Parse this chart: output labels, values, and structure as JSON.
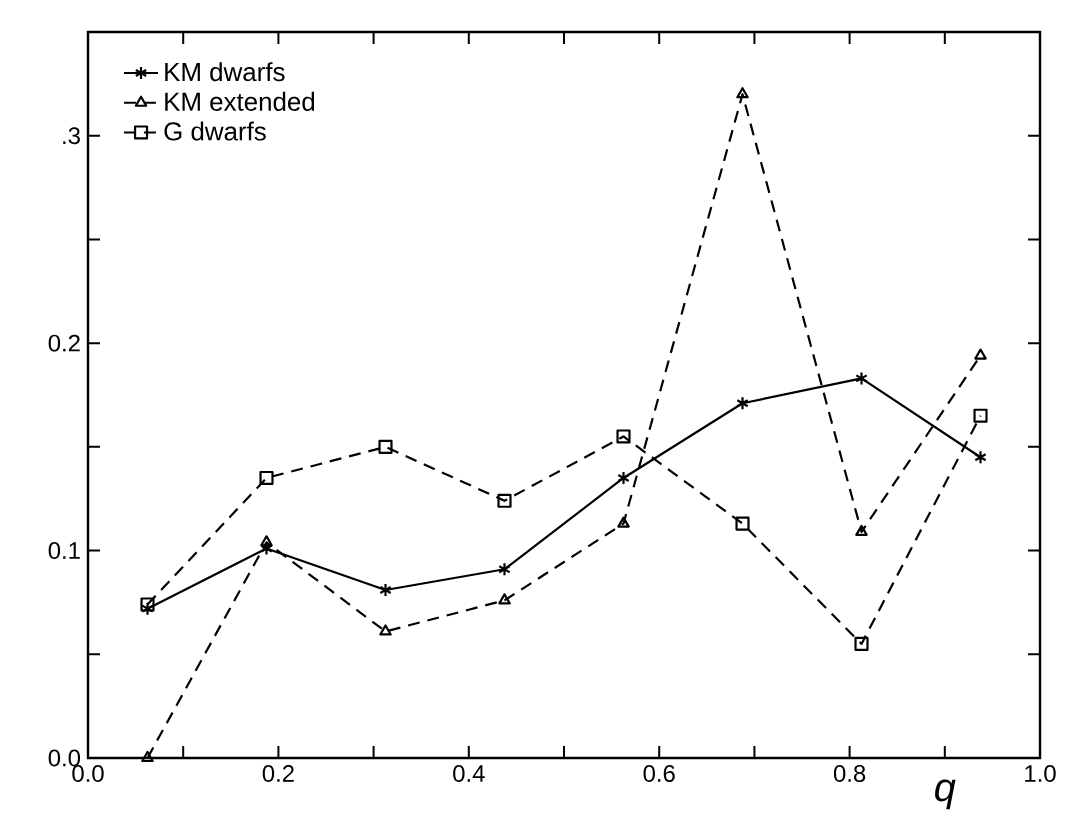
{
  "chart_data": {
    "type": "line",
    "xlabel": "q",
    "xlim": [
      0,
      1
    ],
    "ylim": [
      0,
      0.35
    ],
    "xticks": [
      {
        "value": 0,
        "label": "0.0"
      },
      {
        "value": 0.1,
        "label": null
      },
      {
        "value": 0.2,
        "label": "0.2"
      },
      {
        "value": 0.3,
        "label": null
      },
      {
        "value": 0.4,
        "label": "0.4"
      },
      {
        "value": 0.5,
        "label": null
      },
      {
        "value": 0.6,
        "label": "0.6"
      },
      {
        "value": 0.7,
        "label": null
      },
      {
        "value": 0.8,
        "label": "0.8"
      },
      {
        "value": 0.9,
        "label": null
      },
      {
        "value": 1,
        "label": "1.0"
      }
    ],
    "yticks": [
      {
        "value": 0,
        "label": "0.0"
      },
      {
        "value": 0.05,
        "label": null
      },
      {
        "value": 0.1,
        "label": "0.1"
      },
      {
        "value": 0.15,
        "label": null
      },
      {
        "value": 0.2,
        "label": "0.2"
      },
      {
        "value": 0.25,
        "label": null
      },
      {
        "value": 0.3,
        "label": ".3"
      }
    ],
    "x": [
      0.0625,
      0.1875,
      0.3125,
      0.4375,
      0.5625,
      0.6875,
      0.8125,
      0.9375
    ],
    "legend": "top left",
    "grid": false,
    "series": [
      {
        "name": "KM dwarfs",
        "color": "#000000",
        "marker": "cross",
        "line_style": "solid",
        "values": [
          0.072,
          0.101,
          0.081,
          0.091,
          0.135,
          0.171,
          0.183,
          0.145
        ]
      },
      {
        "name": "KM extended",
        "color": "#000000",
        "marker": "triangle",
        "line_style": "dashed",
        "values": [
          0.0,
          0.104,
          0.061,
          0.076,
          0.113,
          0.32,
          0.109,
          0.194
        ]
      },
      {
        "name": "G dwarfs",
        "color": "#000000",
        "marker": "square",
        "line_style": "dashed",
        "values": [
          0.074,
          0.135,
          0.15,
          0.124,
          0.155,
          0.113,
          0.055,
          0.165
        ]
      }
    ]
  }
}
